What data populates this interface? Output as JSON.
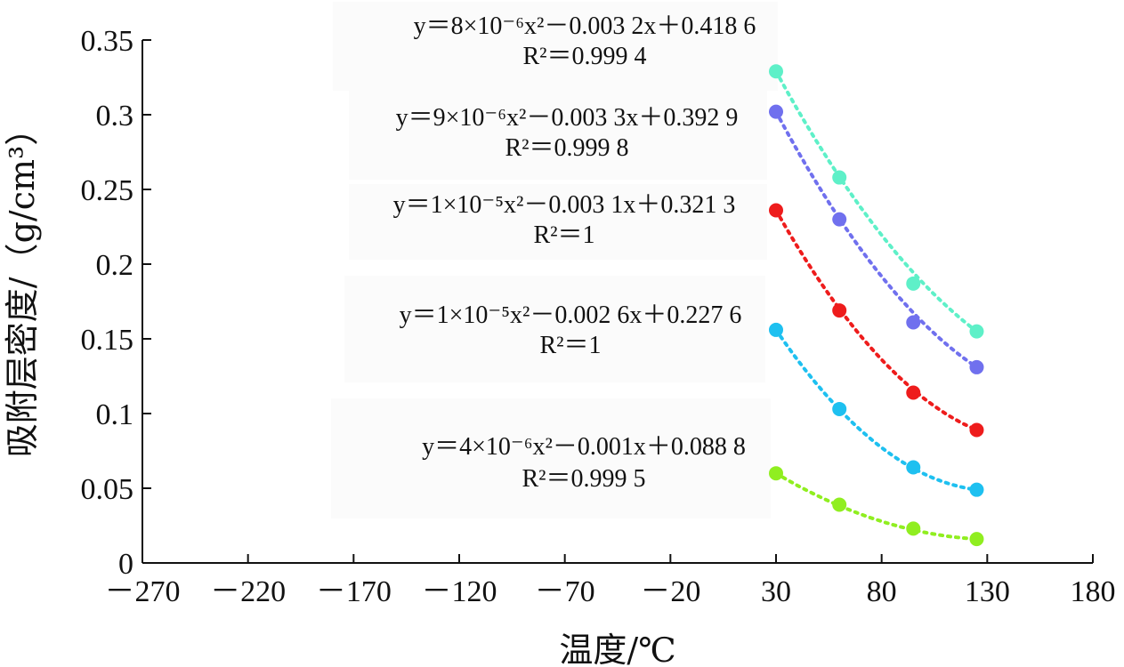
{
  "chart_data": {
    "type": "scatter",
    "xlabel": "温度/℃",
    "ylabel": "吸附层密度/（g/cm³）",
    "xlim": [
      -270,
      180
    ],
    "ylim": [
      0,
      0.35
    ],
    "x_ticks": [
      "－270",
      "－220",
      "－170",
      "－120",
      "－70",
      "－20",
      "30",
      "80",
      "130",
      "180"
    ],
    "y_ticks": [
      "0",
      "0.05",
      "0.1",
      "0.15",
      "0.2",
      "0.25",
      "0.3",
      "0.35"
    ],
    "grid": false,
    "series": [
      {
        "color": "#5ef0c8",
        "x": [
          30,
          60,
          95,
          125
        ],
        "y": [
          0.329,
          0.258,
          0.187,
          0.155
        ],
        "fit": {
          "a": 8e-06,
          "b": -0.0032,
          "c": 0.4186
        },
        "equation_line1": "y＝8×10⁻⁶x²－0.003 2x＋0.418 6",
        "equation_line2": "R²＝0.999 4"
      },
      {
        "color": "#7070ee",
        "x": [
          30,
          60,
          95,
          125
        ],
        "y": [
          0.302,
          0.23,
          0.161,
          0.131
        ],
        "fit": {
          "a": 9e-06,
          "b": -0.0033,
          "c": 0.3929
        },
        "equation_line1": "y＝9×10⁻⁶x²－0.003 3x＋0.392 9",
        "equation_line2": "R²＝0.999 8"
      },
      {
        "color": "#ee1c1c",
        "x": [
          30,
          60,
          95,
          125
        ],
        "y": [
          0.236,
          0.169,
          0.114,
          0.089
        ],
        "fit": {
          "a": 1e-05,
          "b": -0.0031,
          "c": 0.3213
        },
        "equation_line1": "y＝1×10⁻⁵x²－0.003 1x＋0.321 3",
        "equation_line2": "R²＝1"
      },
      {
        "color": "#1ec0f0",
        "x": [
          30,
          60,
          95,
          125
        ],
        "y": [
          0.156,
          0.103,
          0.064,
          0.049
        ],
        "fit": {
          "a": 1e-05,
          "b": -0.0026,
          "c": 0.2276
        },
        "equation_line1": "y＝1×10⁻⁵x²－0.002 6x＋0.227 6",
        "equation_line2": "R²＝1"
      },
      {
        "color": "#90ee20",
        "x": [
          30,
          60,
          95,
          125
        ],
        "y": [
          0.06,
          0.039,
          0.023,
          0.016
        ],
        "fit": {
          "a": 4e-06,
          "b": -0.001,
          "c": 0.0888
        },
        "equation_line1": "y＝4×10⁻⁶x²－0.001x＋0.088 8",
        "equation_line2": "R²＝0.999 5"
      }
    ]
  }
}
